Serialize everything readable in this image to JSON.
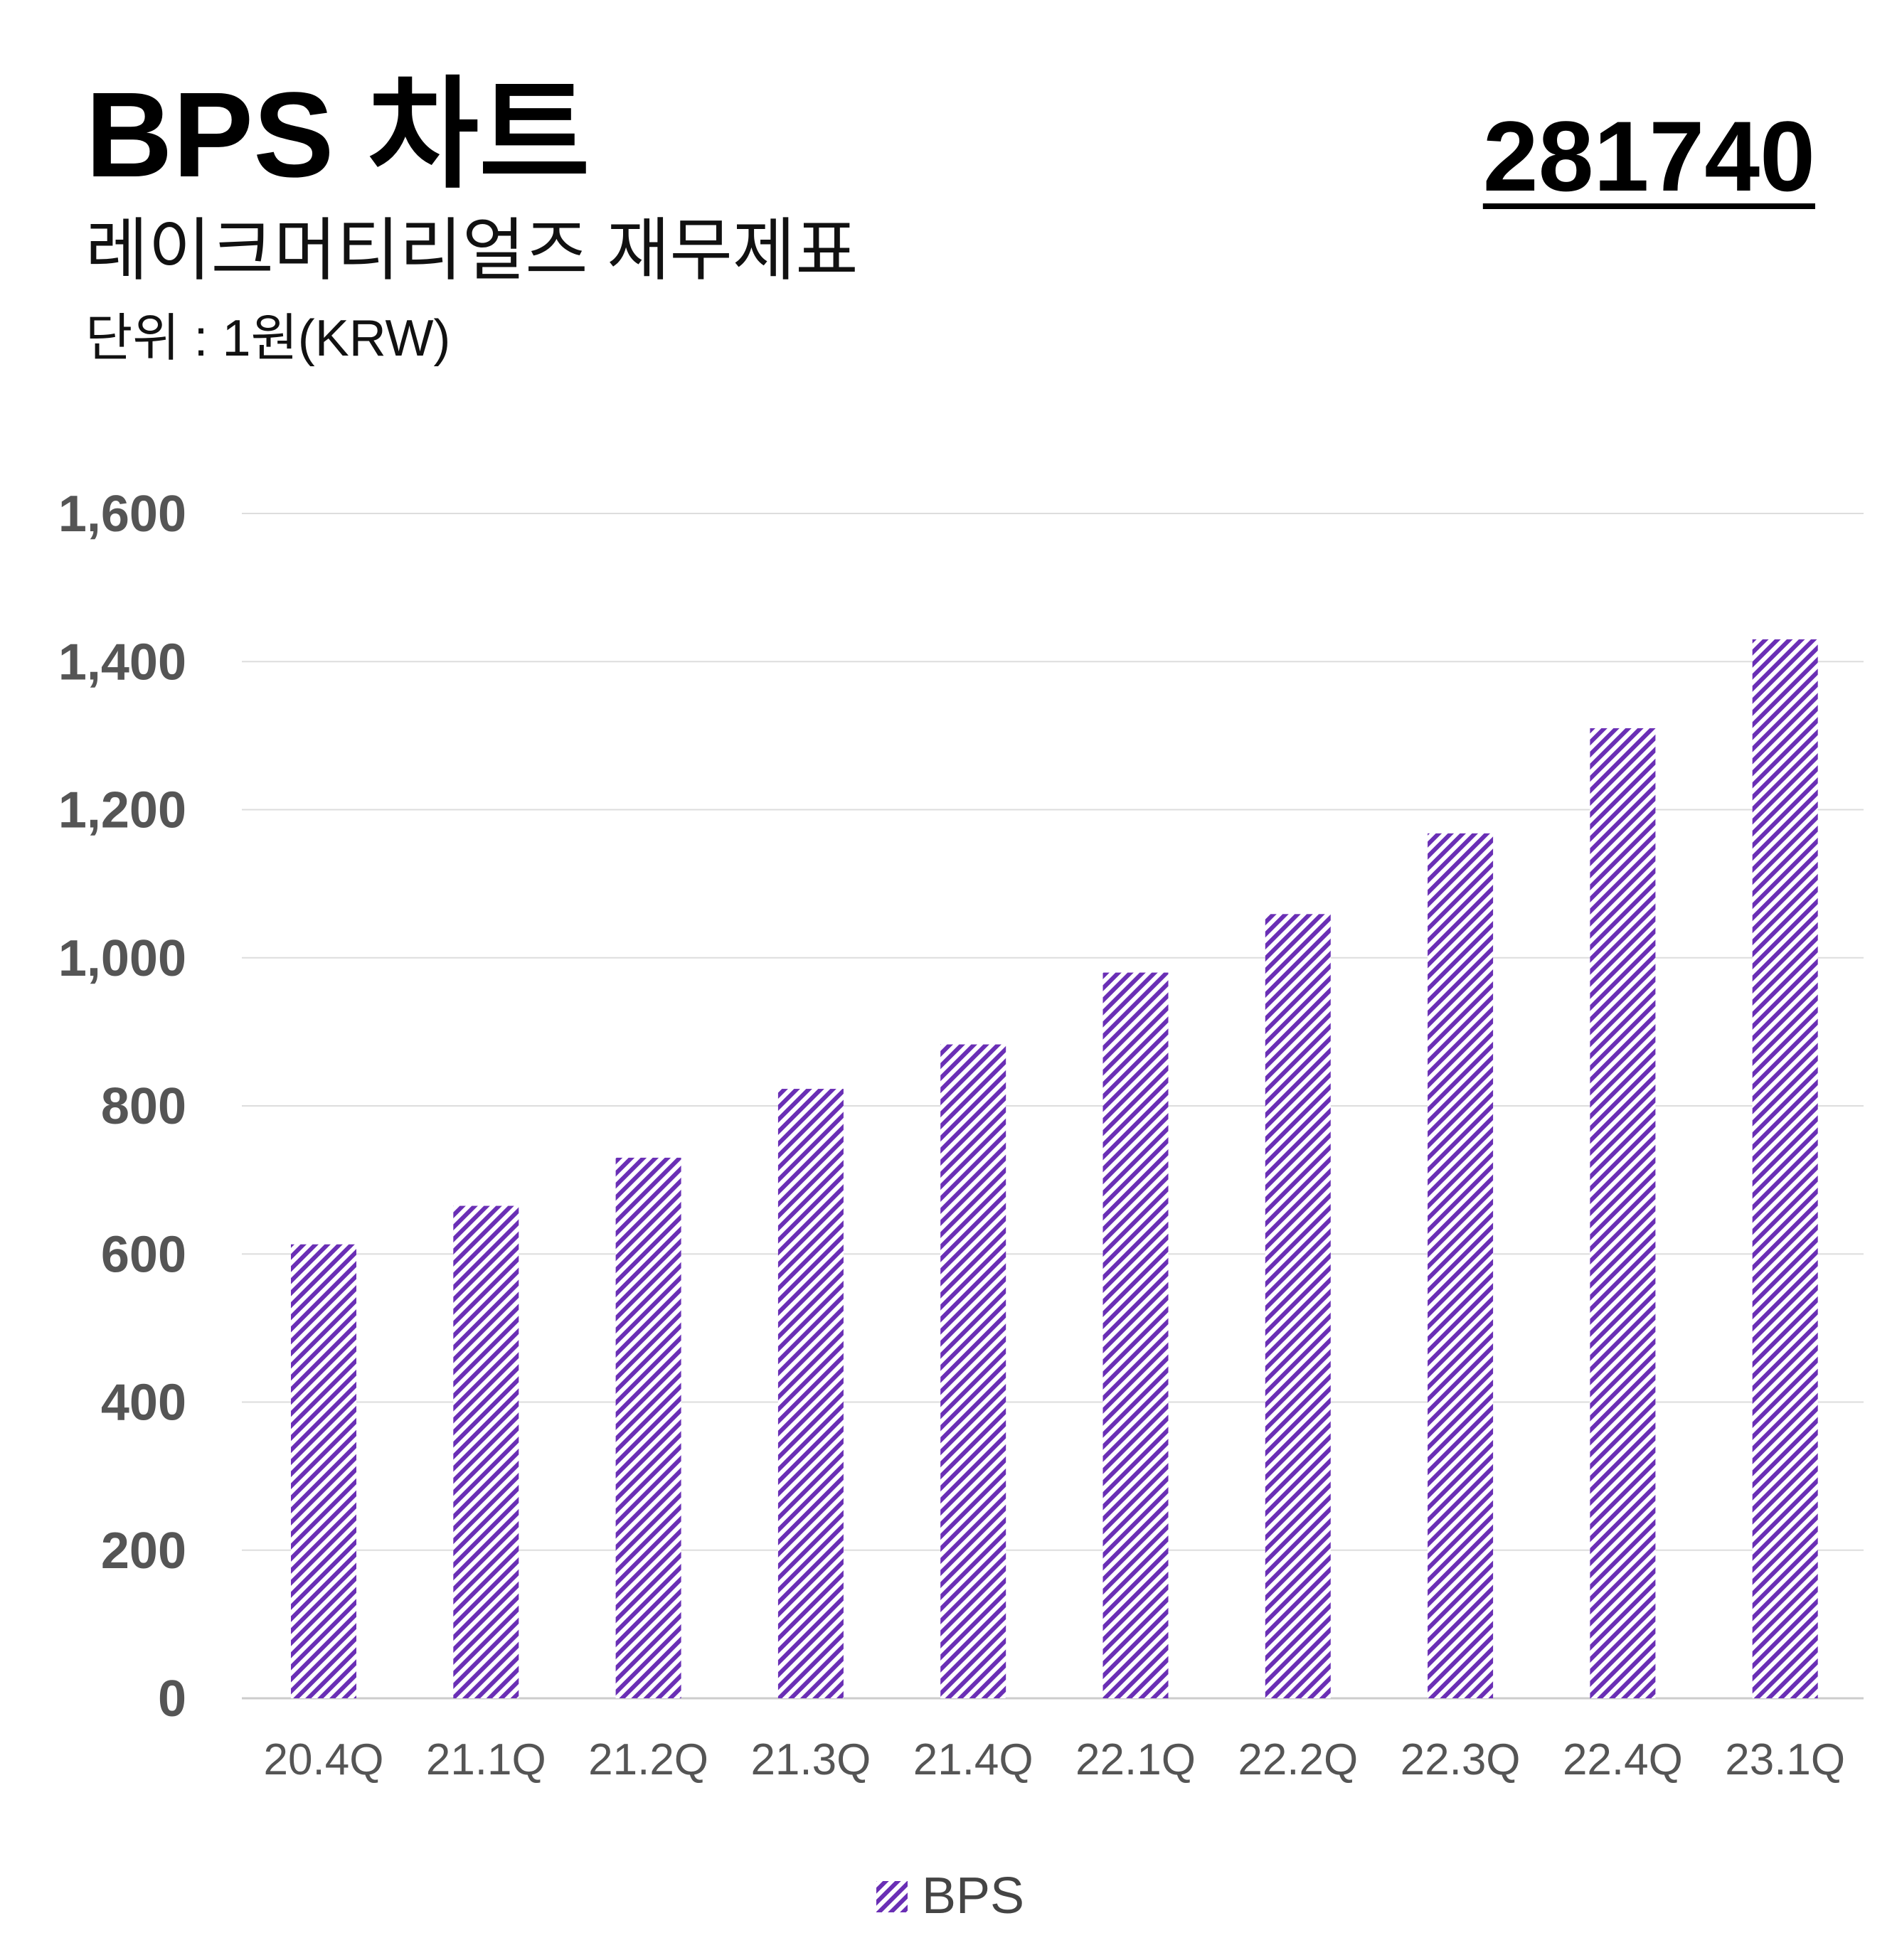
{
  "header": {
    "title": "BPS 차트",
    "code": "281740",
    "subtitle": "레이크머티리얼즈 재무제표",
    "unit": "단위 : 1원(KRW)"
  },
  "colors": {
    "bar_stripe": "#6a2fb5",
    "grid": "#dddddd",
    "tick_text": "#555555"
  },
  "chart_data": {
    "type": "bar",
    "categories": [
      "20.4Q",
      "21.1Q",
      "21.2Q",
      "21.3Q",
      "21.4Q",
      "22.1Q",
      "22.2Q",
      "22.3Q",
      "22.4Q",
      "23.1Q"
    ],
    "series": [
      {
        "name": "BPS",
        "values": [
          613,
          665,
          730,
          823,
          883,
          980,
          1059,
          1168,
          1310,
          1430
        ]
      }
    ],
    "yticks": [
      "0",
      "200",
      "400",
      "600",
      "800",
      "1,000",
      "1,200",
      "1,400",
      "1,600"
    ],
    "ylim": [
      0,
      1600
    ],
    "grid": true,
    "legend": "bottom-center",
    "bar_fill": "diagonal-hatch"
  }
}
